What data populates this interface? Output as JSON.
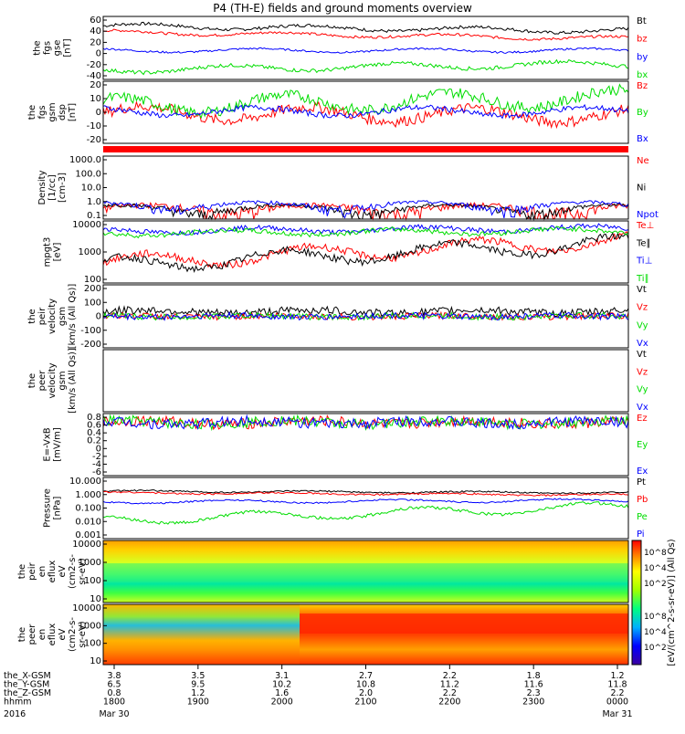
{
  "title": "P4 (TH-E) fields and ground moments overview",
  "colors": {
    "black": "#000000",
    "red": "#ff0000",
    "green": "#00dd00",
    "blue": "#0000ff"
  },
  "chart_data": {
    "type": "line",
    "x_time_labels": [
      "1800",
      "1900",
      "2000",
      "2100",
      "2200",
      "2300",
      "0000"
    ],
    "ephemeris": [
      {
        "label": "the_X-GSM",
        "values": [
          "3.8",
          "3.5",
          "3.1",
          "2.7",
          "2.2",
          "1.8",
          "1.2"
        ]
      },
      {
        "label": "the_Y-GSM",
        "values": [
          "6.5",
          "9.5",
          "10.2",
          "10.8",
          "11.2",
          "11.6",
          "11.8"
        ]
      },
      {
        "label": "the_Z-GSM",
        "values": [
          "0.8",
          "1.2",
          "1.6",
          "2.0",
          "2.2",
          "2.3",
          "2.2"
        ]
      },
      {
        "label": "hhmm",
        "values": [
          "1800",
          "1900",
          "2000",
          "2100",
          "2200",
          "2300",
          "0000"
        ]
      }
    ],
    "date_labels": {
      "year": "2016",
      "start": "Mar 30",
      "end": "Mar 31"
    },
    "colorbar": {
      "label": "[eV/(cm^2-s-sr-eV)] (All Qs)",
      "ticks": [
        "10^8",
        "10^4",
        "10^2"
      ]
    },
    "panels": [
      {
        "id": "fgs",
        "ylabel": [
          "the",
          "fgs",
          "gse",
          "[nT]"
        ],
        "yticks": [
          "60",
          "40",
          "20",
          "0",
          "-20",
          "-40"
        ],
        "ylim": [
          -40,
          60
        ],
        "series": [
          {
            "name": "Bt",
            "color": "black",
            "base": 45,
            "amp": 4,
            "noise": 2.5,
            "drift": -8
          },
          {
            "name": "bz",
            "color": "red",
            "base": 35,
            "amp": 3,
            "noise": 2,
            "drift": -10
          },
          {
            "name": "by",
            "color": "blue",
            "base": 6,
            "amp": 3,
            "noise": 1.5,
            "drift": 0
          },
          {
            "name": "bx",
            "color": "green",
            "base": -25,
            "amp": 5,
            "noise": 3,
            "drift": 10
          }
        ]
      },
      {
        "id": "fgs_gsm",
        "ylabel": [
          "the",
          "fgs",
          "gsm",
          "dsp",
          "[nT]"
        ],
        "yticks": [
          "20",
          "10",
          "0",
          "-10",
          "-20"
        ],
        "ylim": [
          -25,
          20
        ],
        "series": [
          {
            "name": "Bz",
            "color": "red",
            "base": -3,
            "amp": 5,
            "noise": 4,
            "drift": -2
          },
          {
            "name": "By",
            "color": "green",
            "base": 2,
            "amp": 6,
            "noise": 4,
            "drift": 6
          },
          {
            "name": "Bx",
            "color": "blue",
            "base": -2,
            "amp": 3,
            "noise": 2,
            "drift": 0
          }
        ]
      },
      {
        "id": "density",
        "ylabel": [
          "Density",
          "[1/cc]",
          "[cm-3]"
        ],
        "yticks": [
          "1000.0",
          "100.0",
          "10.0",
          "1.0",
          "0.1"
        ],
        "ylim": [
          0.1,
          1000
        ],
        "log": true,
        "series": [
          {
            "name": "Ne",
            "color": "red",
            "base": 0.5,
            "amp": 0.3,
            "noise": 0.3,
            "drift": 0
          },
          {
            "name": "Ni",
            "color": "black",
            "base": 0.5,
            "amp": 0.3,
            "noise": 0.2,
            "drift": 0
          },
          {
            "name": "Npot",
            "color": "blue",
            "base": 0.8,
            "amp": 0.4,
            "noise": 0.3,
            "drift": 0
          }
        ]
      },
      {
        "id": "temp",
        "ylabel": [
          "mpgt3",
          "[eV]"
        ],
        "yticks": [
          "10000",
          "1000",
          "100"
        ],
        "ylim": [
          30,
          10000
        ],
        "log": true,
        "series": [
          {
            "name": "Te⊥",
            "color": "red",
            "base": 2.3,
            "amp": 0.3,
            "noise": 0.15,
            "drift": 0.9
          },
          {
            "name": "Te∥",
            "color": "black",
            "base": 2.2,
            "amp": 0.3,
            "noise": 0.15,
            "drift": 0.9
          },
          {
            "name": "Ti⊥",
            "color": "blue",
            "base": 3.6,
            "amp": 0.1,
            "noise": 0.1,
            "drift": 0.1
          },
          {
            "name": "Ti∥",
            "color": "green",
            "base": 3.5,
            "amp": 0.1,
            "noise": 0.1,
            "drift": 0.1
          }
        ]
      },
      {
        "id": "peir_vel",
        "ylabel": [
          "the",
          "peir",
          "velocity",
          "gsm",
          "[km/s (All Qs)]"
        ],
        "yticks": [
          "200",
          "100",
          "0",
          "-100",
          "-200"
        ],
        "ylim": [
          -200,
          200
        ],
        "series": [
          {
            "name": "Vt",
            "color": "black",
            "base": 30,
            "amp": 10,
            "noise": 25,
            "drift": 0
          },
          {
            "name": "Vz",
            "color": "red",
            "base": 0,
            "amp": 5,
            "noise": 20,
            "drift": 0
          },
          {
            "name": "Vy",
            "color": "green",
            "base": 0,
            "amp": 5,
            "noise": 20,
            "drift": 0
          },
          {
            "name": "Vx",
            "color": "blue",
            "base": 0,
            "amp": 5,
            "noise": 20,
            "drift": 0
          }
        ]
      },
      {
        "id": "peer_vel",
        "ylabel": [
          "the",
          "peer",
          "velocity",
          "gsm",
          "[km/s (All Qs)]"
        ],
        "yticks": [],
        "ylim": [
          0,
          1
        ],
        "series": [
          {
            "name": "Vt",
            "color": "black"
          },
          {
            "name": "Vz",
            "color": "red"
          },
          {
            "name": "Vy",
            "color": "green"
          },
          {
            "name": "Vx",
            "color": "blue"
          }
        ]
      },
      {
        "id": "efield",
        "ylabel": [
          "E=-VxB",
          "[mV/m]"
        ],
        "yticks": [
          "0.8",
          "0.6",
          "0.4",
          "0.2",
          "0",
          "-2",
          "-4",
          "-6"
        ],
        "ylim": [
          -6,
          1
        ],
        "series": [
          {
            "name": "Ez",
            "color": "red",
            "base": 0,
            "amp": 0.2,
            "noise": 0.6,
            "drift": 0
          },
          {
            "name": "Ey",
            "color": "green",
            "base": 0,
            "amp": 0.2,
            "noise": 0.6,
            "drift": 0
          },
          {
            "name": "Ex",
            "color": "blue",
            "base": 0,
            "amp": 0.2,
            "noise": 0.6,
            "drift": 0
          }
        ]
      },
      {
        "id": "pressure",
        "ylabel": [
          "Pressure",
          "[nPa]"
        ],
        "yticks": [
          "10.000",
          "1.000",
          "0.100",
          "0.010",
          "0.001"
        ],
        "ylim": [
          0.001,
          10
        ],
        "log": true,
        "series": [
          {
            "name": "Pt",
            "color": "black",
            "base": 0.1,
            "amp": 0.05,
            "noise": 0.05,
            "drift": -0.1
          },
          {
            "name": "Pb",
            "color": "red",
            "base": 0,
            "amp": 0.05,
            "noise": 0.05,
            "drift": -0.15
          },
          {
            "name": "Pe",
            "color": "green",
            "base": -1.8,
            "amp": 0.3,
            "noise": 0.1,
            "drift": 0.9
          },
          {
            "name": "Pi",
            "color": "blue",
            "base": -0.6,
            "amp": 0.1,
            "noise": 0.05,
            "drift": 0.1
          }
        ]
      },
      {
        "id": "peir_spec",
        "ylabel": [
          "the",
          "peir",
          "en",
          "eflux",
          "eV",
          "(cm2-s-",
          "sr-eV)"
        ],
        "yticks": [
          "10000",
          "1000",
          "100",
          "10"
        ]
      },
      {
        "id": "peer_spec",
        "ylabel": [
          "the",
          "peer",
          "en",
          "eflux",
          "eV",
          "(cm2-s-",
          "sr-eV)"
        ],
        "yticks": [
          "10000",
          "1000",
          "100",
          "10"
        ]
      }
    ]
  }
}
